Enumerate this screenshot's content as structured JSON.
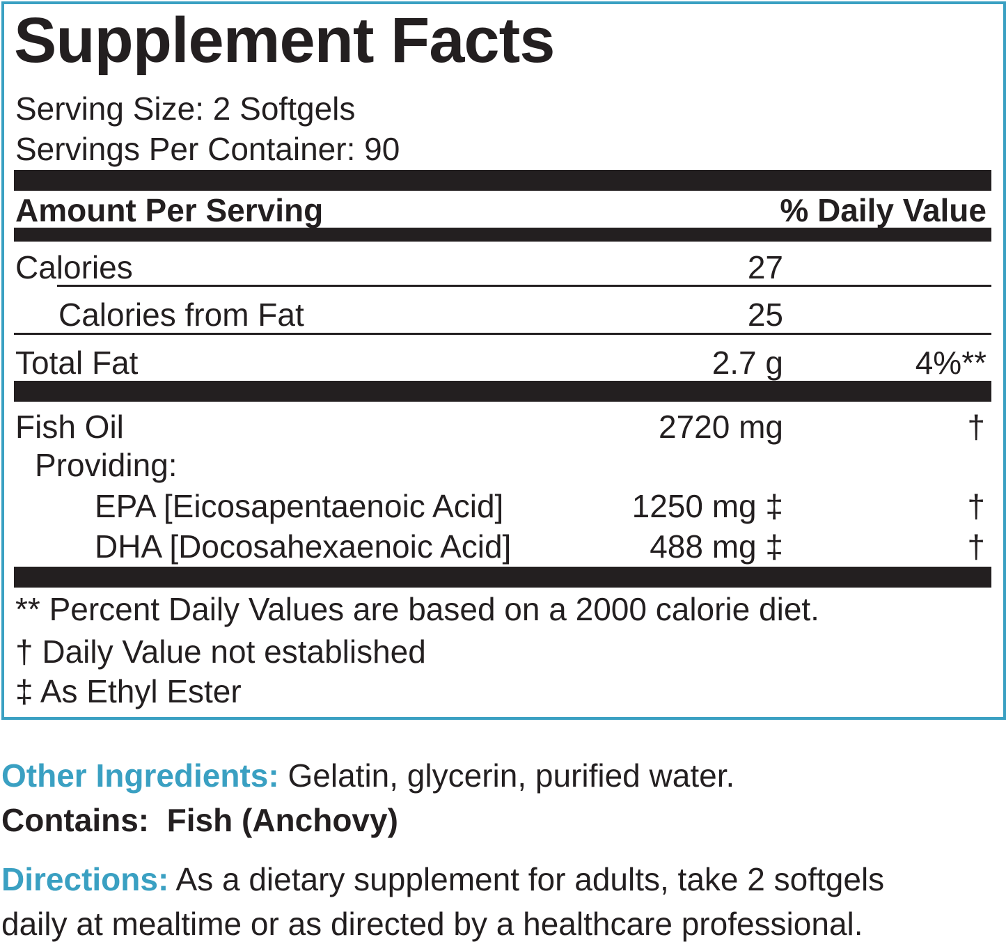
{
  "panel": {
    "title": "Supplement Facts",
    "serving_size": "Serving Size: 2 Softgels",
    "servings_per_container": "Servings Per Container: 90",
    "header": {
      "amount_per_serving": "Amount Per Serving",
      "daily_value": "% Daily Value"
    },
    "rows": [
      {
        "name": "Calories",
        "amount": "27",
        "dv": ""
      },
      {
        "name": "Calories from Fat",
        "amount": "25",
        "dv": ""
      },
      {
        "name": "Total Fat",
        "amount": "2.7 g",
        "dv": "4%**"
      },
      {
        "name": "Fish Oil",
        "amount": "2720 mg",
        "dv": "†"
      },
      {
        "name": "Providing:",
        "amount": "",
        "dv": ""
      },
      {
        "name": "EPA [Eicosapentaenoic Acid]",
        "amount": "1250 mg ‡",
        "dv": "†"
      },
      {
        "name": "DHA [Docosahexaenoic Acid]",
        "amount": "488 mg ‡",
        "dv": "†"
      }
    ],
    "footnotes": [
      "** Percent Daily Values are based on a 2000 calorie diet.",
      "† Daily Value not established",
      "‡ As Ethyl Ester"
    ]
  },
  "other_ingredients": {
    "label": "Other Ingredients:",
    "text": " Gelatin, glycerin, purified water."
  },
  "contains": {
    "label": "Contains:",
    "text": "Fish (Anchovy)"
  },
  "directions": {
    "label": "Directions:",
    "line1": " As a dietary supplement for adults, take 2 softgels",
    "line2": "daily at mealtime or as directed by a healthcare professional."
  },
  "colors": {
    "accent": "#3aa0c2",
    "text": "#231f20"
  }
}
